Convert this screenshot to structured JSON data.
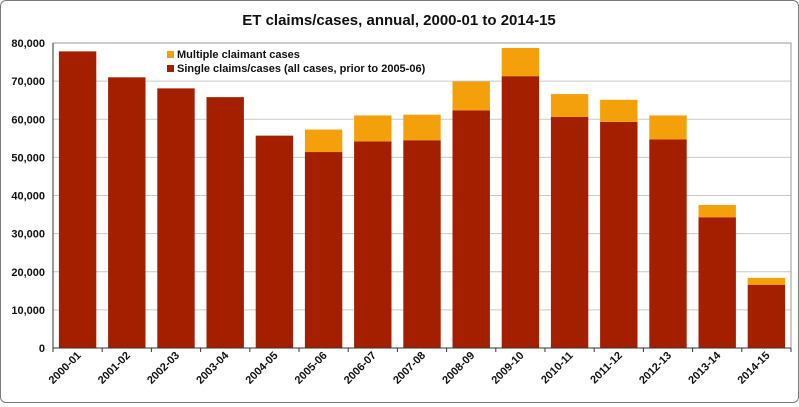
{
  "chart_data": {
    "type": "bar",
    "stacked": true,
    "title": "ET claims/cases, annual, 2000-01 to 2014-15",
    "xlabel": "",
    "ylabel": "",
    "ylim": [
      0,
      80000
    ],
    "yticks": [
      0,
      10000,
      20000,
      30000,
      40000,
      50000,
      60000,
      70000,
      80000
    ],
    "ytick_labels": [
      "0",
      "10,000",
      "20,000",
      "30,000",
      "40,000",
      "50,000",
      "60,000",
      "70,000",
      "80,000"
    ],
    "grid": true,
    "legend_position": "top-left",
    "categories": [
      "2000-01",
      "2001-02",
      "2002-03",
      "2003-04",
      "2004-05",
      "2005-06",
      "2006-07",
      "2007-08",
      "2008-09",
      "2009-10",
      "2010-11",
      "2011-12",
      "2012-13",
      "2013-14",
      "2014-15"
    ],
    "series": [
      {
        "name": "Single claims/cases (all cases, prior to 2005-06)",
        "color": "#a41e00",
        "values": [
          77800,
          71000,
          68100,
          65800,
          55700,
          51400,
          54200,
          54500,
          62300,
          71300,
          60600,
          59300,
          54700,
          34300,
          16600
        ]
      },
      {
        "name": "Multiple claimant cases",
        "color": "#f4a00a",
        "values": [
          0,
          0,
          0,
          0,
          0,
          5900,
          6800,
          6700,
          7600,
          7400,
          6000,
          5800,
          6300,
          3200,
          1800
        ]
      }
    ]
  }
}
